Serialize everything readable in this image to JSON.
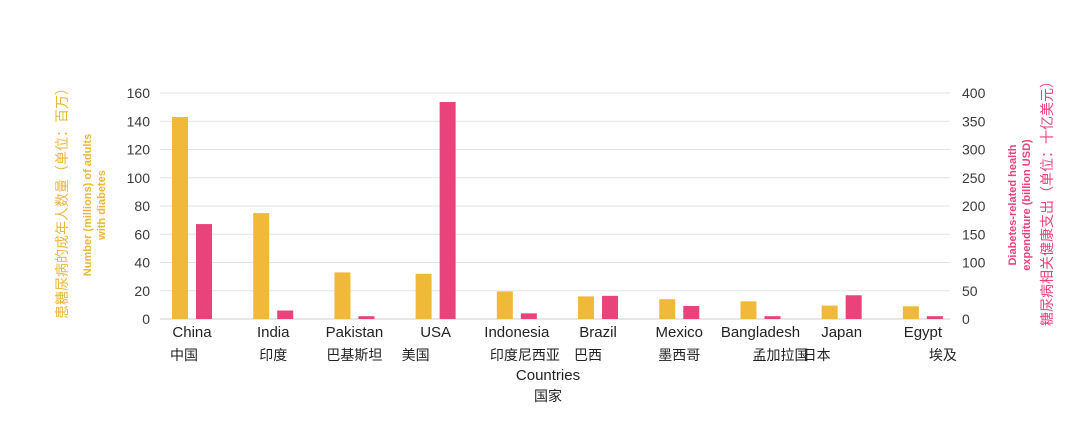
{
  "chart_data": {
    "type": "bar",
    "categories": [
      "China",
      "India",
      "Pakistan",
      "USA",
      "Indonesia",
      "Brazil",
      "Mexico",
      "Bangladesh",
      "Japan",
      "Egypt"
    ],
    "categories_cn": [
      "中国",
      "印度",
      "巴基斯坦",
      "美国",
      "印度尼西亚",
      "巴西",
      "墨西哥",
      "孟加拉国",
      "日本",
      "埃及"
    ],
    "series": [
      {
        "name": "Number (millions) of adults with diabetes",
        "axis": "left",
        "color": "#F0B93A",
        "values": [
          143,
          75,
          33,
          32,
          19.5,
          16,
          14,
          12.5,
          9.5,
          9
        ]
      },
      {
        "name": "Diabetes-related health expenditure (billion USD)",
        "axis": "right",
        "color": "#E8437A",
        "values": [
          168,
          15,
          5,
          384,
          10,
          41,
          23,
          5,
          42,
          5
        ]
      }
    ],
    "ylim_left": [
      0,
      160
    ],
    "yticks_left": [
      0,
      20,
      40,
      60,
      80,
      100,
      120,
      140,
      160
    ],
    "ylim_right": [
      0,
      400
    ],
    "yticks_right": [
      0,
      50,
      100,
      150,
      200,
      250,
      300,
      350,
      400
    ],
    "xlabel": "Countries",
    "xlabel_cn": "国家",
    "ylabel_left_line1": "Number (millions) of adults",
    "ylabel_left_line2": "with diabetes",
    "ylabel_left_cn": "患糖尿病的成年人数量（单位：百万）",
    "ylabel_right_line1": "Diabetes-related health",
    "ylabel_right_line2": "expenditure (billion USD)",
    "ylabel_right_cn": "糖尿病相关健康支出（单位：十亿美元）",
    "grid": true,
    "colors": {
      "left_axis": "#E9B73A",
      "right_axis": "#E8437A",
      "grid": "#e3e3e3"
    }
  }
}
